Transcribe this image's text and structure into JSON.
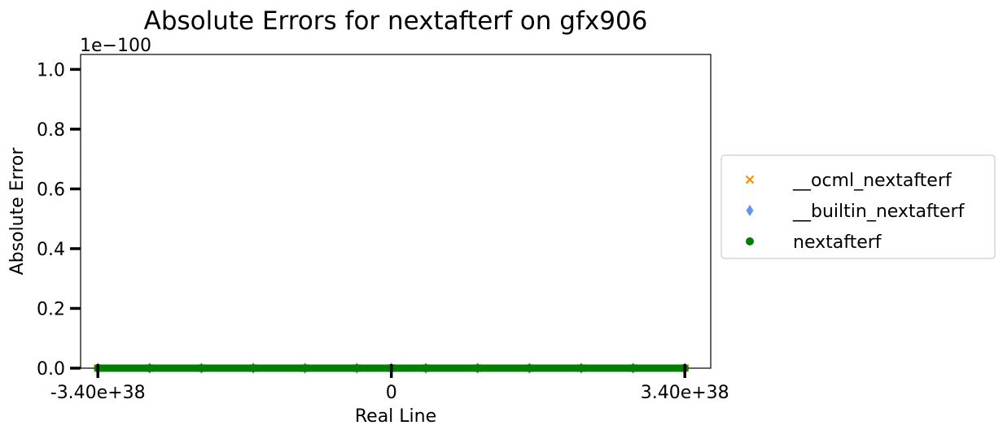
{
  "chart_data": {
    "type": "scatter",
    "title": "Absolute Errors for nextafterf on gfx906",
    "xlabel": "Real Line",
    "ylabel": "Absolute Error",
    "y_offset_label": "1e−100",
    "xlim": [
      -3.6e+38,
      3.7e+38
    ],
    "ylim": [
      0,
      1.05
    ],
    "x_ticks": [
      {
        "value": -3.4e+38,
        "label": "-3.40e+38"
      },
      {
        "value": 0,
        "label": "0"
      },
      {
        "value": 3.4e+38,
        "label": "3.40e+38"
      }
    ],
    "y_ticks": [
      {
        "value": 0.0,
        "label": "0.0"
      },
      {
        "value": 0.2,
        "label": "0.2"
      },
      {
        "value": 0.4,
        "label": "0.4"
      },
      {
        "value": 0.6,
        "label": "0.6"
      },
      {
        "value": 0.8,
        "label": "0.8"
      },
      {
        "value": 1.0,
        "label": "1.0"
      }
    ],
    "grid": false,
    "legend_position": "outside-right",
    "series": [
      {
        "name": "__ocml_nextafterf",
        "marker": "x",
        "color": "#ff8c00",
        "x": [
          -3.4e+38,
          -2.8e+38,
          -2.2e+38,
          -1.6e+38,
          -1e+38,
          -4e+37,
          0,
          4e+37,
          1e+38,
          1.6e+38,
          2.2e+38,
          2.8e+38,
          3.4e+38
        ],
        "y": [
          0,
          0,
          0,
          0,
          0,
          0,
          0,
          0,
          0,
          0,
          0,
          0,
          0
        ]
      },
      {
        "name": "__builtin_nextafterf",
        "marker": "diamond",
        "color": "#6495ed",
        "x": [
          -3.4e+38,
          -2.8e+38,
          -2.2e+38,
          -1.6e+38,
          -1e+38,
          -4e+37,
          0,
          4e+37,
          1e+38,
          1.6e+38,
          2.2e+38,
          2.8e+38,
          3.4e+38
        ],
        "y": [
          0,
          0,
          0,
          0,
          0,
          0,
          0,
          0,
          0,
          0,
          0,
          0,
          0
        ]
      },
      {
        "name": "nextafterf",
        "marker": "circle",
        "color": "#008000",
        "x": [
          -3.4e+38,
          -2.8e+38,
          -2.2e+38,
          -1.6e+38,
          -1e+38,
          -4e+37,
          0,
          4e+37,
          1e+38,
          1.6e+38,
          2.2e+38,
          2.8e+38,
          3.4e+38
        ],
        "y": [
          0,
          0,
          0,
          0,
          0,
          0,
          0,
          0,
          0,
          0,
          0,
          0,
          0
        ]
      }
    ]
  }
}
